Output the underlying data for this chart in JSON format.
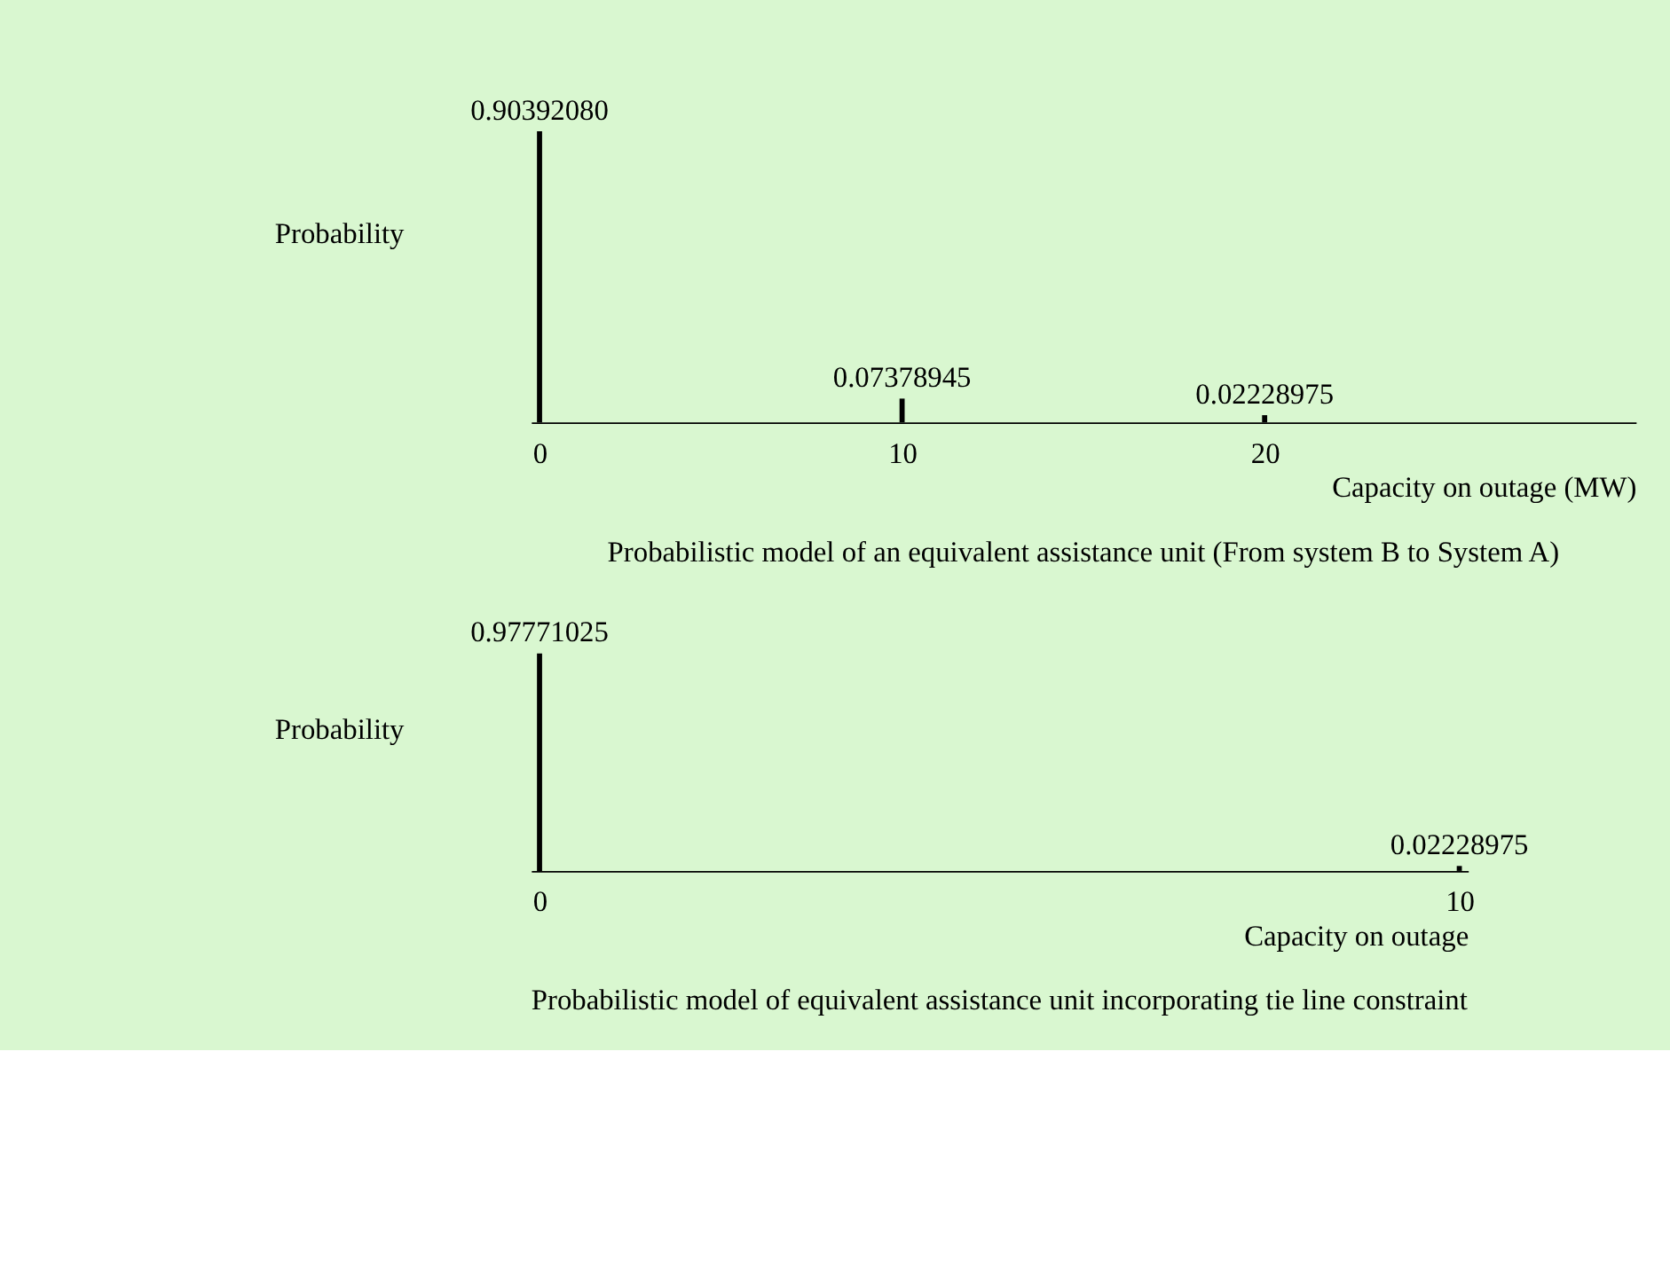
{
  "chart_data": [
    {
      "type": "bar",
      "title": "Probabilistic model of an equivalent assistance unit (From system B to System A)",
      "xlabel": "Capacity on outage (MW)",
      "ylabel": "Probability",
      "x": [
        0,
        10,
        20
      ],
      "values": [
        0.9039208,
        0.07378945,
        0.02228975
      ],
      "value_labels": [
        "0.90392080",
        "0.07378945",
        "0.02228975"
      ],
      "color": "#000000",
      "xlim": [
        0,
        30
      ],
      "xticks": [
        0,
        10,
        20
      ],
      "tick_labels": "x",
      "grid": false
    },
    {
      "type": "bar",
      "title": "Probabilistic model of equivalent assistance unit incorporating tie line constraint",
      "xlabel": "Capacity on outage",
      "ylabel": "Probability",
      "x": [
        0,
        10
      ],
      "values": [
        0.97771025,
        0.02228975
      ],
      "value_labels": [
        "0.97771025",
        "0.02228975"
      ],
      "color": "#000000",
      "xlim": [
        0,
        10
      ],
      "xticks": [
        0,
        10
      ],
      "tick_labels": "x",
      "grid": false
    }
  ]
}
